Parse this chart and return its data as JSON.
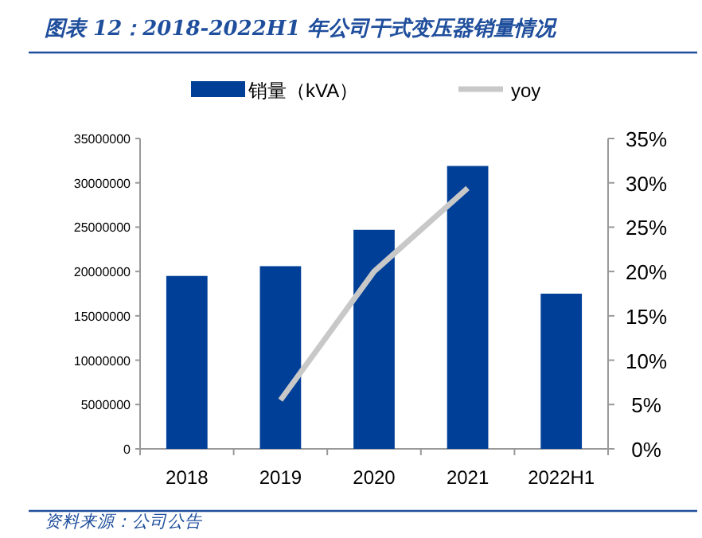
{
  "chart_data": {
    "type": "bar",
    "title": "图表 12：2018-2022H1 年公司干式变压器销量情况",
    "categories": [
      "2018",
      "2019",
      "2020",
      "2021",
      "2022H1"
    ],
    "series": [
      {
        "name": "销量（kVA）",
        "color": "#003f98",
        "values": [
          19500000,
          20600000,
          24700000,
          31900000,
          17500000
        ]
      },
      {
        "name": "yoy",
        "type": "line",
        "axis": "y2",
        "color": "#c8c8c8",
        "values": [
          null,
          5.5,
          20.0,
          29.4,
          null
        ]
      }
    ],
    "ylim": [
      0,
      35000000
    ],
    "yticks": [
      0,
      5000000,
      10000000,
      15000000,
      20000000,
      25000000,
      30000000,
      35000000
    ],
    "y2lim": [
      0,
      35
    ],
    "y2ticks": [
      {
        "value": 0,
        "label": "0%"
      },
      {
        "value": 5,
        "label": "5%"
      },
      {
        "value": 10,
        "label": "10%"
      },
      {
        "value": 15,
        "label": "15%"
      },
      {
        "value": 20,
        "label": "20%"
      },
      {
        "value": 25,
        "label": "25%"
      },
      {
        "value": 30,
        "label": "30%"
      },
      {
        "value": 35,
        "label": "35%"
      }
    ],
    "legend": "top",
    "grid": false,
    "marker": "none",
    "annotations": [
      "资料来源：公司公告"
    ]
  }
}
